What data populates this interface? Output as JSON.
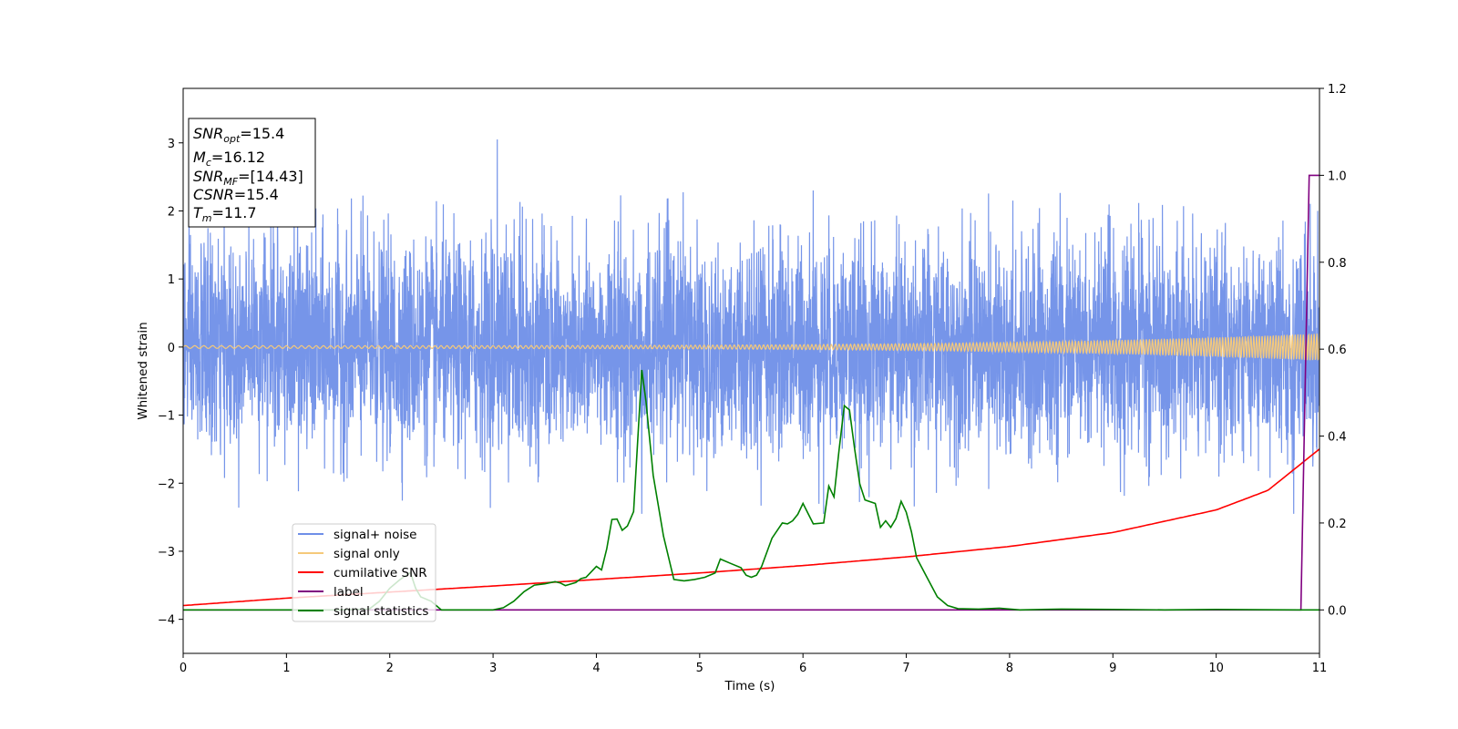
{
  "chart_data": {
    "type": "line",
    "xlabel": "Time (s)",
    "ylabel": "Whitened strain",
    "xlim": [
      0,
      11
    ],
    "ylim_left": [
      -4.5,
      3.8
    ],
    "ylim_right": [
      -0.1,
      1.2
    ],
    "x_ticks": [
      "0",
      "1",
      "2",
      "3",
      "4",
      "5",
      "6",
      "7",
      "8",
      "9",
      "10",
      "11"
    ],
    "y_ticks_left": [
      "3",
      "2",
      "1",
      "0",
      "−1",
      "−2",
      "−3",
      "−4"
    ],
    "y_ticks_right": [
      "1.2",
      "1.0",
      "0.8",
      "0.6",
      "0.4",
      "0.2",
      "0.0"
    ],
    "legend_position": "lower-left",
    "info_box": {
      "line1": {
        "name": "SNR",
        "sub": "opt",
        "value": "=15.4"
      },
      "line2": {
        "name": "M",
        "sub": "c",
        "value": "=16.12"
      },
      "line3": {
        "name": "SNR",
        "sub": "MF",
        "value": "=[14.43]"
      },
      "line4": {
        "name": "CSNR",
        "sub": "",
        "value": "=15.4"
      },
      "line5": {
        "name": "T",
        "sub": "m",
        "value": "=11.7"
      }
    },
    "series": [
      {
        "name": "signal+ noise",
        "color": "#6f8fe8",
        "axis": "left",
        "description_of_values": "broadband noise, envelope approx ±1.8",
        "sigma": 0.75,
        "spikes": [
          [
            3.04,
            3.05
          ],
          [
            4.44,
            -2.45
          ],
          [
            6.1,
            2.3
          ],
          [
            6.2,
            -2.45
          ],
          [
            10.75,
            -2.45
          ],
          [
            1.72,
            2.0
          ]
        ]
      },
      {
        "name": "signal only",
        "color": "#f5c97a",
        "axis": "left",
        "chirp_amplitude_start": 0.02,
        "chirp_amplitude_end": 0.2
      },
      {
        "name": "cumilative SNR",
        "color": "#ff0000",
        "axis": "right",
        "x": [
          0,
          1,
          2,
          3,
          4,
          5,
          6,
          7,
          8,
          9,
          10,
          10.5,
          11
        ],
        "y": [
          0.01,
          0.027,
          0.041,
          0.055,
          0.07,
          0.085,
          0.102,
          0.122,
          0.146,
          0.178,
          0.23,
          0.275,
          0.37
        ]
      },
      {
        "name": "label",
        "color": "#800080",
        "axis": "right",
        "x": [
          0,
          10.82,
          10.9,
          11
        ],
        "y": [
          0.0,
          0.0,
          1.0,
          1.0
        ]
      },
      {
        "name": "signal statistics",
        "color": "#008000",
        "axis": "right",
        "x": [
          0,
          0.5,
          1,
          1.5,
          1.8,
          1.9,
          2.0,
          2.1,
          2.2,
          2.25,
          2.3,
          2.4,
          2.5,
          3.0,
          3.1,
          3.2,
          3.3,
          3.4,
          3.5,
          3.6,
          3.65,
          3.7,
          3.8,
          3.85,
          3.9,
          4.0,
          4.05,
          4.1,
          4.15,
          4.2,
          4.25,
          4.3,
          4.36,
          4.44,
          4.48,
          4.55,
          4.65,
          4.75,
          4.85,
          4.95,
          5.05,
          5.15,
          5.2,
          5.3,
          5.4,
          5.45,
          5.5,
          5.55,
          5.6,
          5.7,
          5.8,
          5.85,
          5.9,
          5.95,
          6.0,
          6.1,
          6.2,
          6.25,
          6.3,
          6.35,
          6.4,
          6.45,
          6.5,
          6.55,
          6.6,
          6.7,
          6.75,
          6.8,
          6.85,
          6.9,
          6.95,
          7.0,
          7.05,
          7.1,
          7.2,
          7.3,
          7.4,
          7.5,
          7.7,
          7.9,
          8.1,
          8.5,
          9.0,
          9.5,
          10.0,
          10.8,
          11.0
        ],
        "y": [
          0.0,
          0.0,
          0.0,
          0.0,
          0.002,
          0.02,
          0.05,
          0.07,
          0.086,
          0.05,
          0.03,
          0.02,
          0.0,
          0.0,
          0.005,
          0.02,
          0.042,
          0.057,
          0.06,
          0.065,
          0.062,
          0.056,
          0.063,
          0.072,
          0.075,
          0.1,
          0.092,
          0.14,
          0.208,
          0.209,
          0.183,
          0.193,
          0.226,
          0.552,
          0.48,
          0.31,
          0.17,
          0.07,
          0.067,
          0.07,
          0.075,
          0.085,
          0.117,
          0.107,
          0.097,
          0.08,
          0.075,
          0.08,
          0.1,
          0.165,
          0.2,
          0.198,
          0.205,
          0.22,
          0.245,
          0.198,
          0.2,
          0.285,
          0.26,
          0.37,
          0.47,
          0.46,
          0.37,
          0.29,
          0.253,
          0.245,
          0.19,
          0.205,
          0.19,
          0.21,
          0.25,
          0.225,
          0.18,
          0.12,
          0.075,
          0.03,
          0.01,
          0.003,
          0.002,
          0.004,
          0.0,
          0.002,
          0.001,
          0.0,
          0.001,
          0.0,
          0.0
        ]
      }
    ]
  }
}
